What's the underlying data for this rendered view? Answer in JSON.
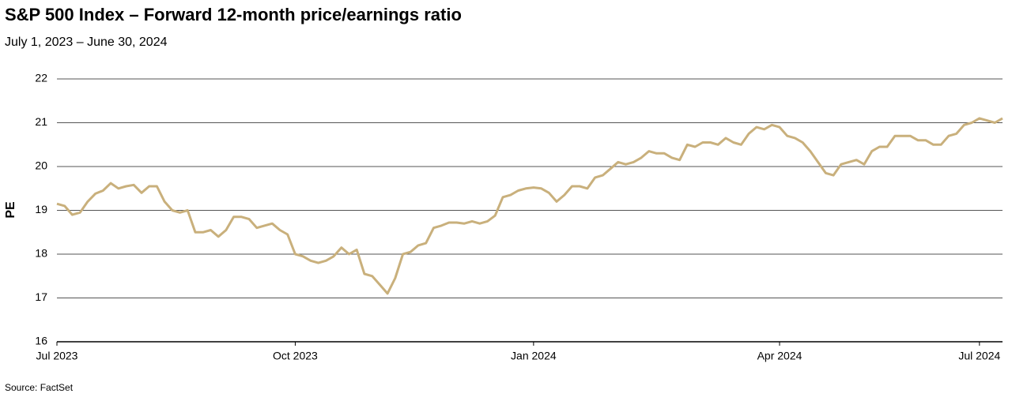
{
  "chart_data": {
    "type": "line",
    "title": "S&P 500 Index – Forward 12-month price/earnings ratio",
    "subtitle": "July 1, 2023 – June 30, 2024",
    "y_label": "PE",
    "source": "Source: FactSet",
    "categories": [
      "Jul 2023",
      null,
      null,
      null,
      null,
      null,
      null,
      null,
      null,
      null,
      null,
      null,
      null,
      null,
      null,
      null,
      null,
      null,
      null,
      null,
      null,
      null,
      null,
      null,
      null,
      null,
      null,
      null,
      null,
      null,
      null,
      "Oct 2023",
      null,
      null,
      null,
      null,
      null,
      null,
      null,
      null,
      null,
      null,
      null,
      null,
      null,
      null,
      null,
      null,
      null,
      null,
      null,
      null,
      null,
      null,
      null,
      null,
      null,
      null,
      null,
      null,
      null,
      null,
      "Jan 2024",
      null,
      null,
      null,
      null,
      null,
      null,
      null,
      null,
      null,
      null,
      null,
      null,
      null,
      null,
      null,
      null,
      null,
      null,
      null,
      null,
      null,
      null,
      null,
      null,
      null,
      null,
      null,
      null,
      null,
      null,
      null,
      "Apr 2024",
      null,
      null,
      null,
      null,
      null,
      null,
      null,
      null,
      null,
      null,
      null,
      null,
      null,
      null,
      null,
      null,
      null,
      null,
      null,
      null,
      null,
      null,
      null,
      null,
      null,
      "Jul 2024",
      null,
      null,
      null
    ],
    "series": [
      {
        "name": "PE",
        "color": "#c9b07c",
        "values": [
          19.15,
          19.1,
          18.9,
          18.95,
          19.2,
          19.38,
          19.45,
          19.62,
          19.5,
          19.55,
          19.58,
          19.4,
          19.55,
          19.55,
          19.2,
          19.0,
          18.95,
          19.0,
          18.5,
          18.5,
          18.55,
          18.4,
          18.55,
          18.85,
          18.85,
          18.8,
          18.6,
          18.65,
          18.7,
          18.55,
          18.45,
          18.0,
          17.95,
          17.85,
          17.8,
          17.85,
          17.95,
          18.15,
          18.0,
          18.1,
          17.55,
          17.5,
          17.3,
          17.1,
          17.45,
          18.0,
          18.05,
          18.2,
          18.25,
          18.6,
          18.65,
          18.72,
          18.72,
          18.7,
          18.75,
          18.7,
          18.75,
          18.88,
          19.3,
          19.35,
          19.45,
          19.5,
          19.52,
          19.5,
          19.4,
          19.2,
          19.35,
          19.55,
          19.55,
          19.5,
          19.75,
          19.8,
          19.95,
          20.1,
          20.05,
          20.1,
          20.2,
          20.35,
          20.3,
          20.3,
          20.2,
          20.15,
          20.5,
          20.45,
          20.55,
          20.55,
          20.5,
          20.65,
          20.55,
          20.5,
          20.75,
          20.9,
          20.85,
          20.95,
          20.9,
          20.7,
          20.65,
          20.55,
          20.35,
          20.1,
          19.85,
          19.8,
          20.05,
          20.1,
          20.15,
          20.05,
          20.35,
          20.45,
          20.45,
          20.7,
          20.7,
          20.7,
          20.6,
          20.6,
          20.5,
          20.5,
          20.7,
          20.75,
          20.95,
          21.0,
          21.1,
          21.05,
          21.0,
          21.1
        ]
      }
    ],
    "ylim": [
      16,
      22
    ],
    "yticks": [
      16,
      17,
      18,
      19,
      20,
      21,
      22
    ],
    "grid": true
  }
}
